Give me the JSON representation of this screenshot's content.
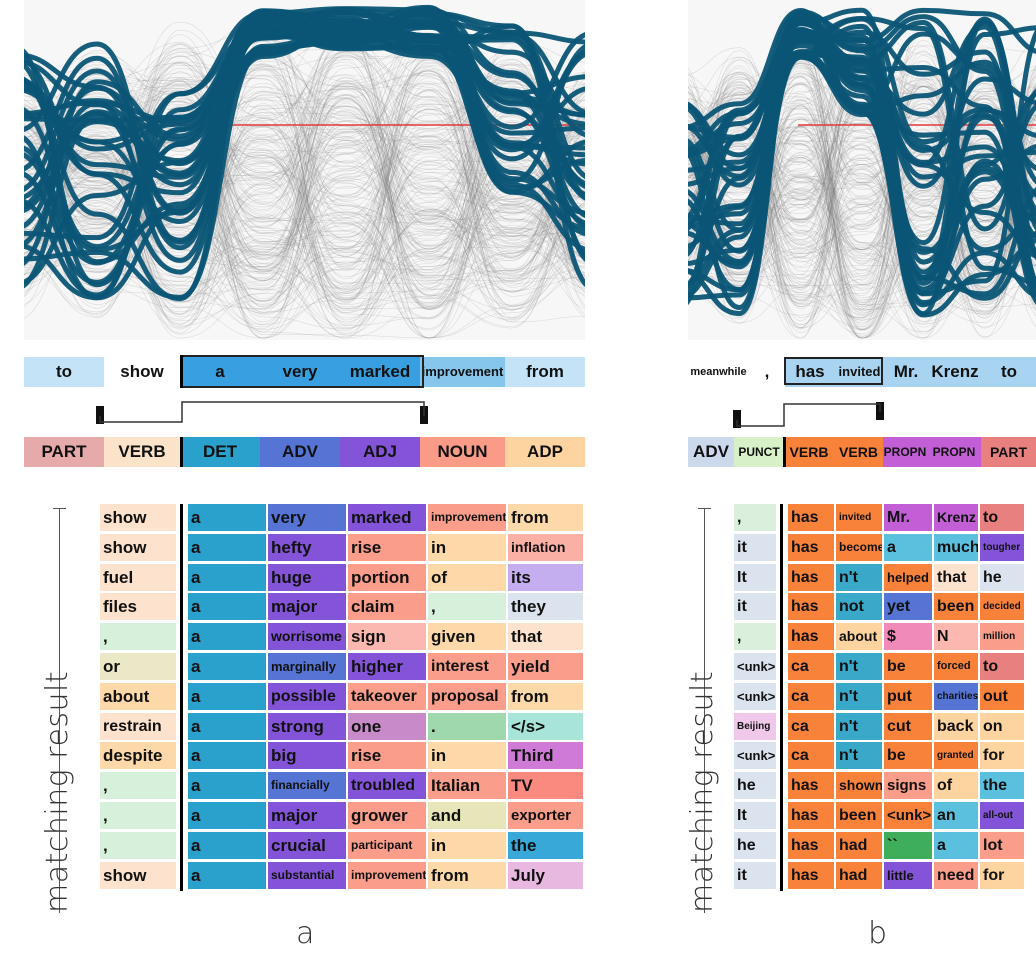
{
  "colors": {
    "line_highlight": "#0b5576",
    "median": "#e03a3a",
    "bg_line": "#7d7d7d"
  },
  "panel_a": {
    "label": "a",
    "matching_label": "matching result",
    "sentence": [
      {
        "text": "to",
        "color": "#c4e3f6"
      },
      {
        "text": "show",
        "color": "#ffffff"
      },
      {
        "text": "a",
        "color": "#38a0e0"
      },
      {
        "text": "very",
        "color": "#38a0e0"
      },
      {
        "text": "marked",
        "color": "#38a0e0"
      },
      {
        "text": "improvement",
        "color": "#86c6ec"
      },
      {
        "text": "from",
        "color": "#c4e3f6"
      }
    ],
    "pos": [
      {
        "text": "PART",
        "color": "#e6aaaa"
      },
      {
        "text": "VERB",
        "color": "#fbe3c9"
      },
      {
        "text": "DET",
        "color": "#2aa0cd"
      },
      {
        "text": "ADV",
        "color": "#5574d4"
      },
      {
        "text": "ADJ",
        "color": "#8454d8"
      },
      {
        "text": "NOUN",
        "color": "#f99b86"
      },
      {
        "text": "ADP",
        "color": "#fdd3a0"
      }
    ],
    "rows": [
      [
        {
          "t": "show",
          "c": "#fde3cd"
        },
        {
          "t": "a",
          "c": "#2aa0cd"
        },
        {
          "t": "very",
          "c": "#5574d4"
        },
        {
          "t": "marked",
          "c": "#8454d8"
        },
        {
          "t": "improvement",
          "c": "#fa9d8a"
        },
        {
          "t": "from",
          "c": "#fdd8a8"
        }
      ],
      [
        {
          "t": "show",
          "c": "#fde3cd"
        },
        {
          "t": "a",
          "c": "#2aa0cd"
        },
        {
          "t": "hefty",
          "c": "#8454d8"
        },
        {
          "t": "rise",
          "c": "#fa9d8a"
        },
        {
          "t": "in",
          "c": "#fdd8a8"
        },
        {
          "t": "inflation",
          "c": "#fbb0a6"
        }
      ],
      [
        {
          "t": "fuel",
          "c": "#fde3cd"
        },
        {
          "t": "a",
          "c": "#2aa0cd"
        },
        {
          "t": "huge",
          "c": "#8454d8"
        },
        {
          "t": "portion",
          "c": "#fa9d8a"
        },
        {
          "t": "of",
          "c": "#fdd8a8"
        },
        {
          "t": "its",
          "c": "#c4aef0"
        }
      ],
      [
        {
          "t": "files",
          "c": "#fde3cd"
        },
        {
          "t": "a",
          "c": "#2aa0cd"
        },
        {
          "t": "major",
          "c": "#8454d8"
        },
        {
          "t": "claim",
          "c": "#fa9d8a"
        },
        {
          "t": ",",
          "c": "#d7f0dc"
        },
        {
          "t": "they",
          "c": "#dbe3ee"
        }
      ],
      [
        {
          "t": ",",
          "c": "#d7f0dc"
        },
        {
          "t": "a",
          "c": "#2aa0cd"
        },
        {
          "t": "worrisome",
          "c": "#8454d8"
        },
        {
          "t": "sign",
          "c": "#fbb8b0"
        },
        {
          "t": "given",
          "c": "#fdd8a8"
        },
        {
          "t": "that",
          "c": "#fde3cd"
        }
      ],
      [
        {
          "t": "or",
          "c": "#ebe8c8"
        },
        {
          "t": "a",
          "c": "#2aa0cd"
        },
        {
          "t": "marginally",
          "c": "#5574d4"
        },
        {
          "t": "higher",
          "c": "#8454d8"
        },
        {
          "t": "interest",
          "c": "#fa9d8a"
        },
        {
          "t": "yield",
          "c": "#fa9d8a"
        }
      ],
      [
        {
          "t": "about",
          "c": "#fdd8a8"
        },
        {
          "t": "a",
          "c": "#2aa0cd"
        },
        {
          "t": "possible",
          "c": "#8454d8"
        },
        {
          "t": "takeover",
          "c": "#fa9d8a"
        },
        {
          "t": "proposal",
          "c": "#fa9d8a"
        },
        {
          "t": "from",
          "c": "#fdd8a8"
        }
      ],
      [
        {
          "t": "restrain",
          "c": "#fde3cd"
        },
        {
          "t": "a",
          "c": "#2aa0cd"
        },
        {
          "t": "strong",
          "c": "#8454d8"
        },
        {
          "t": "one",
          "c": "#c98ac9"
        },
        {
          "t": ".",
          "c": "#9fd8ad"
        },
        {
          "t": "</s>",
          "c": "#a8e4d8"
        }
      ],
      [
        {
          "t": "despite",
          "c": "#fdd8a8"
        },
        {
          "t": "a",
          "c": "#2aa0cd"
        },
        {
          "t": "big",
          "c": "#8454d8"
        },
        {
          "t": "rise",
          "c": "#fa9d8a"
        },
        {
          "t": "in",
          "c": "#fdd8a8"
        },
        {
          "t": "Third",
          "c": "#d07ad8"
        }
      ],
      [
        {
          "t": ",",
          "c": "#d7f0dc"
        },
        {
          "t": "a",
          "c": "#2aa0cd"
        },
        {
          "t": "financially",
          "c": "#5574d4"
        },
        {
          "t": "troubled",
          "c": "#8454d8"
        },
        {
          "t": "Italian",
          "c": "#fa9d8a"
        },
        {
          "t": "TV",
          "c": "#fa8a80"
        }
      ],
      [
        {
          "t": ",",
          "c": "#d7f0dc"
        },
        {
          "t": "a",
          "c": "#2aa0cd"
        },
        {
          "t": "major",
          "c": "#8454d8"
        },
        {
          "t": "grower",
          "c": "#fa9d8a"
        },
        {
          "t": "and",
          "c": "#e6e6b8"
        },
        {
          "t": "exporter",
          "c": "#fa9d8a"
        }
      ],
      [
        {
          "t": ",",
          "c": "#d7f0dc"
        },
        {
          "t": "a",
          "c": "#2aa0cd"
        },
        {
          "t": "crucial",
          "c": "#8454d8"
        },
        {
          "t": "participant",
          "c": "#fa9d8a"
        },
        {
          "t": "in",
          "c": "#fdd8a8"
        },
        {
          "t": "the",
          "c": "#38a8d8"
        }
      ],
      [
        {
          "t": "show",
          "c": "#fde3cd"
        },
        {
          "t": "a",
          "c": "#2aa0cd"
        },
        {
          "t": "substantial",
          "c": "#8454d8"
        },
        {
          "t": "improvement",
          "c": "#fa9d8a"
        },
        {
          "t": "from",
          "c": "#fdd8a8"
        },
        {
          "t": "July",
          "c": "#e8b8e0"
        }
      ]
    ]
  },
  "panel_b": {
    "label": "b",
    "matching_label": "matching result",
    "sentence": [
      {
        "text": "meanwhile",
        "color": "#ffffff"
      },
      {
        "text": ",",
        "color": "#ffffff"
      },
      {
        "text": "has",
        "color": "#a8d4f2"
      },
      {
        "text": "invited",
        "color": "#a8d4f2"
      },
      {
        "text": "Mr.",
        "color": "#a8d4f2"
      },
      {
        "text": "Krenz",
        "color": "#a8d4f2"
      },
      {
        "text": "to",
        "color": "#a8d4f2"
      }
    ],
    "pos": [
      {
        "text": "ADV",
        "color": "#ccd8ec"
      },
      {
        "text": "PUNCT",
        "color": "#d7f0c8"
      },
      {
        "text": "VERB",
        "color": "#f8823a"
      },
      {
        "text": "VERB",
        "color": "#f8823a"
      },
      {
        "text": "PROPN",
        "color": "#c25fd6"
      },
      {
        "text": "PROPN",
        "color": "#c25fd6"
      },
      {
        "text": "PART",
        "color": "#e88080"
      }
    ],
    "rows": [
      [
        {
          "t": ",",
          "c": "#dbf0dc"
        },
        {
          "t": "has",
          "c": "#f8823a"
        },
        {
          "t": "invited",
          "c": "#f8823a"
        },
        {
          "t": "Mr.",
          "c": "#c25fd6"
        },
        {
          "t": "Krenz",
          "c": "#c25fd6"
        },
        {
          "t": "to",
          "c": "#e88080"
        }
      ],
      [
        {
          "t": "it",
          "c": "#dbe3ee"
        },
        {
          "t": "has",
          "c": "#f8823a"
        },
        {
          "t": "become",
          "c": "#f8823a"
        },
        {
          "t": "a",
          "c": "#5bc0de"
        },
        {
          "t": "much",
          "c": "#5bc0de"
        },
        {
          "t": "tougher",
          "c": "#8454d8"
        }
      ],
      [
        {
          "t": "It",
          "c": "#dbe3ee"
        },
        {
          "t": "has",
          "c": "#f8823a"
        },
        {
          "t": "n't",
          "c": "#3aa8c8"
        },
        {
          "t": "helped",
          "c": "#f8823a"
        },
        {
          "t": "that",
          "c": "#fde3cd"
        },
        {
          "t": "he",
          "c": "#dbe3ee"
        }
      ],
      [
        {
          "t": "it",
          "c": "#dbe3ee"
        },
        {
          "t": "has",
          "c": "#f8823a"
        },
        {
          "t": "not",
          "c": "#3aa8c8"
        },
        {
          "t": "yet",
          "c": "#5574d4"
        },
        {
          "t": "been",
          "c": "#f8823a"
        },
        {
          "t": "decided",
          "c": "#f8823a"
        }
      ],
      [
        {
          "t": ",",
          "c": "#dbf0dc"
        },
        {
          "t": "has",
          "c": "#f8823a"
        },
        {
          "t": "about",
          "c": "#fdd3a0"
        },
        {
          "t": "$",
          "c": "#f08ab8"
        },
        {
          "t": "N",
          "c": "#fbb8b0"
        },
        {
          "t": "million",
          "c": "#fa9d8a"
        }
      ],
      [
        {
          "t": "<unk>",
          "c": "#dbe3ee"
        },
        {
          "t": "ca",
          "c": "#f8823a"
        },
        {
          "t": "n't",
          "c": "#3aa8c8"
        },
        {
          "t": "be",
          "c": "#f8823a"
        },
        {
          "t": "forced",
          "c": "#f8823a"
        },
        {
          "t": "to",
          "c": "#e88080"
        }
      ],
      [
        {
          "t": "<unk>",
          "c": "#dbe3ee"
        },
        {
          "t": "ca",
          "c": "#f8823a"
        },
        {
          "t": "n't",
          "c": "#3aa8c8"
        },
        {
          "t": "put",
          "c": "#f8823a"
        },
        {
          "t": "charities",
          "c": "#5574d4"
        },
        {
          "t": "out",
          "c": "#f8823a"
        }
      ],
      [
        {
          "t": "Beijing",
          "c": "#f0c8ea"
        },
        {
          "t": "ca",
          "c": "#f8823a"
        },
        {
          "t": "n't",
          "c": "#3aa8c8"
        },
        {
          "t": "cut",
          "c": "#f8823a"
        },
        {
          "t": "back",
          "c": "#fdd3a0"
        },
        {
          "t": "on",
          "c": "#fdd3a0"
        }
      ],
      [
        {
          "t": "<unk>",
          "c": "#dbe3ee"
        },
        {
          "t": "ca",
          "c": "#f8823a"
        },
        {
          "t": "n't",
          "c": "#3aa8c8"
        },
        {
          "t": "be",
          "c": "#f8823a"
        },
        {
          "t": "granted",
          "c": "#f8823a"
        },
        {
          "t": "for",
          "c": "#fdd3a0"
        }
      ],
      [
        {
          "t": "he",
          "c": "#dbe3ee"
        },
        {
          "t": "has",
          "c": "#f8823a"
        },
        {
          "t": "shown",
          "c": "#f8823a"
        },
        {
          "t": "signs",
          "c": "#fa9d8a"
        },
        {
          "t": "of",
          "c": "#fdd3a0"
        },
        {
          "t": "the",
          "c": "#5bc0de"
        }
      ],
      [
        {
          "t": "It",
          "c": "#dbe3ee"
        },
        {
          "t": "has",
          "c": "#f8823a"
        },
        {
          "t": "been",
          "c": "#f8823a"
        },
        {
          "t": "<unk>",
          "c": "#f8823a"
        },
        {
          "t": "an",
          "c": "#5bc0de"
        },
        {
          "t": "all-out",
          "c": "#8454d8"
        }
      ],
      [
        {
          "t": "he",
          "c": "#dbe3ee"
        },
        {
          "t": "has",
          "c": "#f8823a"
        },
        {
          "t": "had",
          "c": "#f8823a"
        },
        {
          "t": "``",
          "c": "#3fae5a"
        },
        {
          "t": "a",
          "c": "#5bc0de"
        },
        {
          "t": "lot",
          "c": "#fa9d8a"
        }
      ],
      [
        {
          "t": "it",
          "c": "#dbe3ee"
        },
        {
          "t": "has",
          "c": "#f8823a"
        },
        {
          "t": "had",
          "c": "#f8823a"
        },
        {
          "t": "little",
          "c": "#8454d8"
        },
        {
          "t": "need",
          "c": "#fa9d8a"
        },
        {
          "t": "for",
          "c": "#fdd3a0"
        }
      ]
    ]
  }
}
